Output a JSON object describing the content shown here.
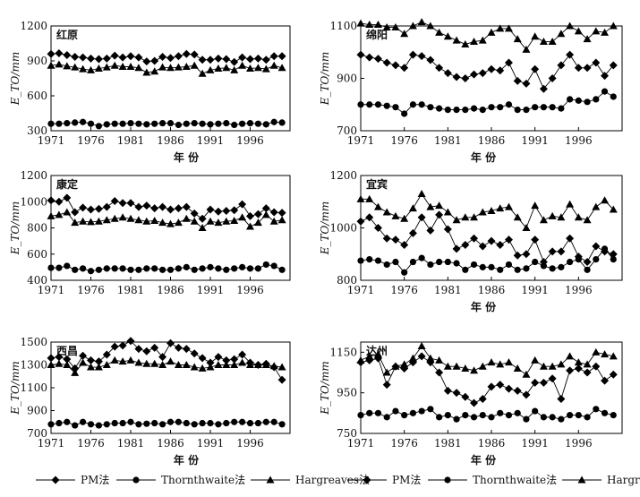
{
  "figure": {
    "legend": [
      {
        "name": "PM法",
        "marker": "diamond"
      },
      {
        "name": "Thornthwaite法",
        "marker": "circle"
      },
      {
        "name": "Hargreaves法",
        "marker": "triangle"
      }
    ]
  },
  "chart_data": [
    {
      "type": "line",
      "title": "红原",
      "xlabel": "年 份",
      "ylabel": "E_TO/mm",
      "ylim": [
        300,
        1200
      ],
      "yticks": [
        300,
        600,
        900,
        1200
      ],
      "xlim": [
        1971,
        2001
      ],
      "xticks": [
        1971,
        1976,
        1981,
        1986,
        1991,
        1996
      ],
      "x": [
        1971,
        1972,
        1973,
        1974,
        1975,
        1976,
        1977,
        1978,
        1979,
        1980,
        1981,
        1982,
        1983,
        1984,
        1985,
        1986,
        1987,
        1988,
        1989,
        1990,
        1991,
        1992,
        1993,
        1994,
        1995,
        1996,
        1997,
        1998,
        1999,
        2000
      ],
      "series": [
        {
          "name": "PM法",
          "values": [
            960,
            965,
            950,
            935,
            930,
            920,
            915,
            920,
            945,
            930,
            940,
            930,
            895,
            900,
            935,
            925,
            940,
            960,
            955,
            910,
            910,
            920,
            915,
            890,
            930,
            915,
            920,
            910,
            940,
            940
          ]
        },
        {
          "name": "Thornthwaite法",
          "values": [
            360,
            360,
            365,
            370,
            375,
            360,
            340,
            355,
            360,
            360,
            365,
            360,
            355,
            360,
            365,
            365,
            350,
            360,
            365,
            360,
            355,
            360,
            365,
            350,
            360,
            365,
            360,
            355,
            375,
            370
          ]
        },
        {
          "name": "Hargreaves法",
          "values": [
            860,
            870,
            855,
            845,
            830,
            820,
            835,
            845,
            860,
            850,
            850,
            840,
            800,
            810,
            845,
            840,
            845,
            850,
            860,
            790,
            820,
            835,
            840,
            820,
            860,
            835,
            840,
            830,
            860,
            840
          ]
        }
      ]
    },
    {
      "type": "line",
      "title": "绵阳",
      "xlabel": "年 份",
      "ylabel": "E_TO/mm",
      "ylim": [
        700,
        1100
      ],
      "yticks": [
        700,
        900,
        1100
      ],
      "xlim": [
        1971,
        2001
      ],
      "xticks": [
        1971,
        1976,
        1981,
        1986,
        1991,
        1996
      ],
      "x": [
        1971,
        1972,
        1973,
        1974,
        1975,
        1976,
        1977,
        1978,
        1979,
        1980,
        1981,
        1982,
        1983,
        1984,
        1985,
        1986,
        1987,
        1988,
        1989,
        1990,
        1991,
        1992,
        1993,
        1994,
        1995,
        1996,
        1997,
        1998,
        1999,
        2000
      ],
      "series": [
        {
          "name": "PM法",
          "values": [
            990,
            980,
            975,
            960,
            950,
            940,
            990,
            985,
            970,
            940,
            920,
            905,
            900,
            915,
            920,
            935,
            930,
            960,
            890,
            880,
            935,
            860,
            900,
            950,
            990,
            940,
            940,
            960,
            910,
            950
          ]
        },
        {
          "name": "Thornthwaite法",
          "values": [
            800,
            800,
            800,
            795,
            790,
            765,
            800,
            800,
            790,
            785,
            780,
            780,
            780,
            785,
            780,
            790,
            790,
            800,
            780,
            780,
            790,
            790,
            790,
            785,
            820,
            815,
            810,
            820,
            850,
            830
          ]
        },
        {
          "name": "Hargreaves法",
          "values": [
            1110,
            1105,
            1105,
            1095,
            1095,
            1070,
            1100,
            1115,
            1100,
            1075,
            1060,
            1045,
            1030,
            1040,
            1045,
            1075,
            1090,
            1090,
            1050,
            1010,
            1060,
            1040,
            1040,
            1070,
            1100,
            1080,
            1050,
            1080,
            1075,
            1100
          ]
        }
      ]
    },
    {
      "type": "line",
      "title": "康定",
      "xlabel": "",
      "ylabel": "E_TO/mm",
      "ylim": [
        400,
        1200
      ],
      "yticks": [
        400,
        600,
        800,
        1000,
        1200
      ],
      "xlim": [
        1971,
        2001
      ],
      "xticks": [
        1971,
        1976,
        1981,
        1986,
        1991,
        1996
      ],
      "x": [
        1971,
        1972,
        1973,
        1974,
        1975,
        1976,
        1977,
        1978,
        1979,
        1980,
        1981,
        1982,
        1983,
        1984,
        1985,
        1986,
        1987,
        1988,
        1989,
        1990,
        1991,
        1992,
        1993,
        1994,
        1995,
        1996,
        1997,
        1998,
        1999,
        2000
      ],
      "series": [
        {
          "name": "PM法",
          "values": [
            1010,
            1000,
            1030,
            920,
            955,
            940,
            945,
            960,
            1005,
            990,
            990,
            960,
            970,
            950,
            960,
            940,
            950,
            960,
            910,
            870,
            940,
            925,
            930,
            935,
            980,
            890,
            905,
            950,
            920,
            915
          ]
        },
        {
          "name": "Thornthwaite法",
          "values": [
            495,
            495,
            510,
            480,
            490,
            470,
            480,
            490,
            490,
            490,
            480,
            480,
            490,
            490,
            480,
            480,
            490,
            500,
            480,
            490,
            500,
            490,
            480,
            490,
            500,
            490,
            490,
            520,
            510,
            480
          ]
        },
        {
          "name": "Hargreaves法",
          "values": [
            890,
            900,
            920,
            840,
            850,
            845,
            850,
            860,
            870,
            880,
            870,
            860,
            850,
            855,
            840,
            830,
            840,
            870,
            850,
            800,
            850,
            840,
            850,
            855,
            880,
            810,
            840,
            900,
            850,
            860
          ]
        }
      ]
    },
    {
      "type": "line",
      "title": "宜宾",
      "xlabel": "年 份",
      "ylabel": "E_TO/mm",
      "ylim": [
        800,
        1200
      ],
      "yticks": [
        800,
        1000,
        1200
      ],
      "xlim": [
        1971,
        2001
      ],
      "xticks": [
        1971,
        1976,
        1981,
        1986,
        1991,
        1996
      ],
      "x": [
        1971,
        1972,
        1973,
        1974,
        1975,
        1976,
        1977,
        1978,
        1979,
        1980,
        1981,
        1982,
        1983,
        1984,
        1985,
        1986,
        1987,
        1988,
        1989,
        1990,
        1991,
        1992,
        1993,
        1994,
        1995,
        1996,
        1997,
        1998,
        1999,
        2000
      ],
      "series": [
        {
          "name": "PM法",
          "values": [
            1025,
            1040,
            1000,
            960,
            955,
            935,
            980,
            1040,
            990,
            1050,
            995,
            920,
            935,
            960,
            930,
            950,
            935,
            955,
            895,
            900,
            955,
            870,
            910,
            910,
            960,
            890,
            870,
            930,
            910,
            900
          ]
        },
        {
          "name": "Thornthwaite法",
          "values": [
            875,
            880,
            875,
            860,
            870,
            830,
            870,
            885,
            860,
            870,
            870,
            865,
            840,
            860,
            850,
            850,
            840,
            860,
            840,
            845,
            870,
            855,
            845,
            850,
            870,
            880,
            840,
            880,
            920,
            880
          ]
        },
        {
          "name": "Hargreaves法",
          "values": [
            1110,
            1110,
            1080,
            1060,
            1045,
            1035,
            1075,
            1130,
            1080,
            1085,
            1060,
            1030,
            1040,
            1040,
            1060,
            1065,
            1075,
            1080,
            1040,
            1000,
            1085,
            1030,
            1045,
            1040,
            1090,
            1040,
            1030,
            1080,
            1105,
            1070
          ]
        }
      ]
    },
    {
      "type": "line",
      "title": "西昌",
      "xlabel": "年 份",
      "ylabel": "E_TO/mm",
      "ylim": [
        700,
        1500
      ],
      "yticks": [
        700,
        900,
        1100,
        1300,
        1500
      ],
      "xlim": [
        1971,
        2001
      ],
      "xticks": [
        1971,
        1976,
        1981,
        1986,
        1991,
        1996
      ],
      "x": [
        1971,
        1972,
        1973,
        1974,
        1975,
        1976,
        1977,
        1978,
        1979,
        1980,
        1981,
        1982,
        1983,
        1984,
        1985,
        1986,
        1987,
        1988,
        1989,
        1990,
        1991,
        1992,
        1993,
        1994,
        1995,
        1996,
        1997,
        1998,
        1999,
        2000
      ],
      "series": [
        {
          "name": "PM法",
          "values": [
            1360,
            1370,
            1350,
            1270,
            1380,
            1340,
            1330,
            1390,
            1460,
            1470,
            1510,
            1440,
            1420,
            1450,
            1370,
            1490,
            1450,
            1440,
            1400,
            1360,
            1320,
            1370,
            1340,
            1350,
            1390,
            1320,
            1300,
            1310,
            1280,
            1170
          ]
        },
        {
          "name": "Thornthwaite法",
          "values": [
            780,
            790,
            800,
            770,
            800,
            780,
            770,
            780,
            790,
            790,
            800,
            780,
            785,
            790,
            780,
            800,
            800,
            790,
            780,
            790,
            790,
            780,
            790,
            800,
            800,
            790,
            790,
            800,
            800,
            780
          ]
        },
        {
          "name": "Hargreaves法",
          "values": [
            1300,
            1310,
            1300,
            1230,
            1320,
            1280,
            1280,
            1300,
            1340,
            1330,
            1340,
            1320,
            1310,
            1310,
            1300,
            1330,
            1300,
            1300,
            1280,
            1270,
            1280,
            1300,
            1300,
            1300,
            1320,
            1300,
            1300,
            1300,
            1290,
            1280
          ]
        }
      ]
    },
    {
      "type": "line",
      "title": "达州",
      "xlabel": "年 份",
      "ylabel": "E_TO/mm",
      "ylim": [
        750,
        1200
      ],
      "yticks": [
        750,
        950,
        1150
      ],
      "xlim": [
        1971,
        2001
      ],
      "xticks": [
        1971,
        1976,
        1981,
        1986,
        1991,
        1996
      ],
      "x": [
        1971,
        1972,
        1973,
        1974,
        1975,
        1976,
        1977,
        1978,
        1979,
        1980,
        1981,
        1982,
        1983,
        1984,
        1985,
        1986,
        1987,
        1988,
        1989,
        1990,
        1991,
        1992,
        1993,
        1994,
        1995,
        1996,
        1997,
        1998,
        1999,
        2000
      ],
      "series": [
        {
          "name": "PM法",
          "values": [
            1100,
            1110,
            1120,
            990,
            1080,
            1070,
            1100,
            1130,
            1100,
            1050,
            960,
            950,
            930,
            900,
            920,
            980,
            990,
            970,
            960,
            940,
            1000,
            1000,
            1020,
            920,
            1060,
            1070,
            1050,
            1080,
            1010,
            1040
          ]
        },
        {
          "name": "Thornthwaite法",
          "values": [
            840,
            850,
            850,
            830,
            860,
            840,
            850,
            860,
            870,
            830,
            840,
            820,
            840,
            830,
            840,
            830,
            850,
            840,
            850,
            820,
            860,
            830,
            830,
            820,
            840,
            840,
            830,
            870,
            850,
            840
          ]
        },
        {
          "name": "Hargreaves法",
          "values": [
            1110,
            1130,
            1140,
            1050,
            1080,
            1090,
            1120,
            1180,
            1120,
            1110,
            1080,
            1080,
            1070,
            1060,
            1080,
            1100,
            1090,
            1100,
            1070,
            1040,
            1110,
            1080,
            1080,
            1090,
            1130,
            1100,
            1090,
            1150,
            1140,
            1130
          ]
        }
      ]
    }
  ]
}
